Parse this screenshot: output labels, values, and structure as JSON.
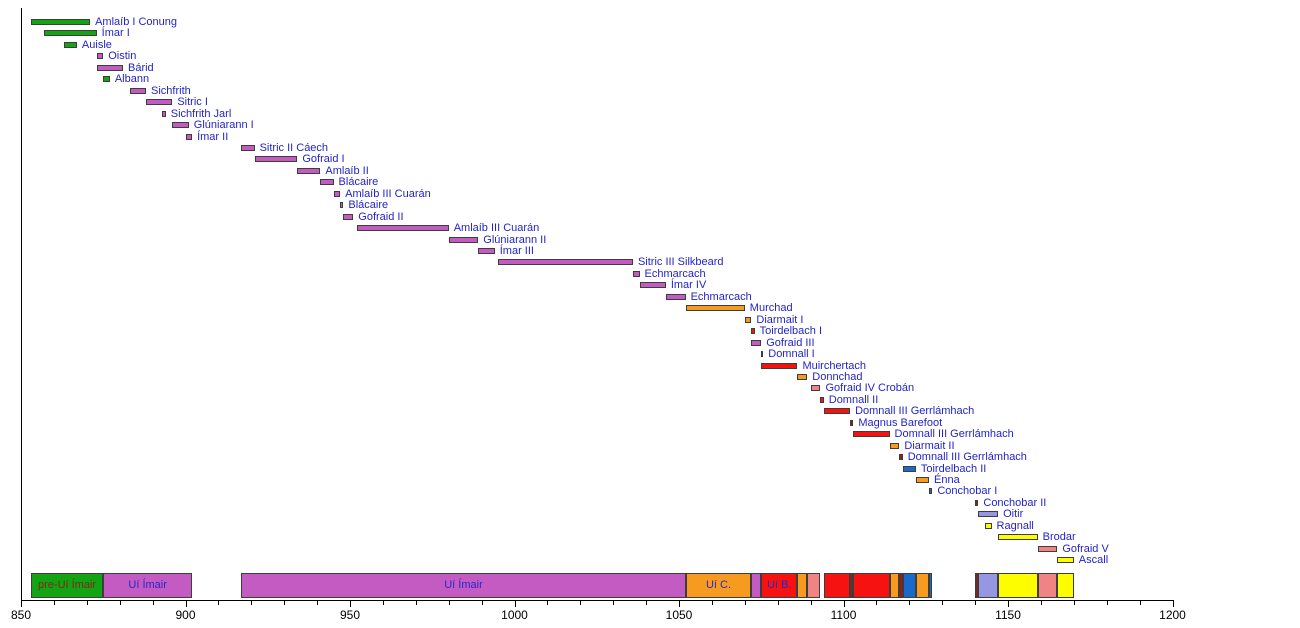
{
  "palette": {
    "green": "#13a413",
    "purple": "#c35bc3",
    "orange": "#f79b20",
    "red": "#f71212",
    "darkred": "#9e1a10",
    "salmon": "#f08484",
    "blue": "#1a6acc",
    "periwinkle": "#9697e3",
    "yellow": "#fdfd00"
  },
  "text_colors": {
    "king_label": "#2323c8",
    "summary_label": "#2828c8",
    "summary_label_alt": "#7b2a1d",
    "axis_label": "#000000"
  },
  "chart_data": {
    "type": "bar",
    "variant": "gantt-timeline",
    "xlabel": "",
    "ylabel": "",
    "grid": false,
    "legend": false,
    "axis": {
      "x_min": 850,
      "x_max": 1200,
      "x_ticks": [
        850,
        900,
        950,
        1000,
        1050,
        1100,
        1150,
        1200
      ],
      "minor_tick_step": 10
    },
    "rows": [
      {
        "label": "Amlaíb I Conung",
        "start": 853,
        "end": 871,
        "color": "green"
      },
      {
        "label": "Ímar I",
        "start": 857,
        "end": 873,
        "color": "green"
      },
      {
        "label": "Auisle",
        "start": 863,
        "end": 867,
        "color": "green"
      },
      {
        "label": "Oistin",
        "start": 873,
        "end": 875,
        "color": "purple"
      },
      {
        "label": "Bárid",
        "start": 873,
        "end": 881,
        "color": "purple"
      },
      {
        "label": "Albann",
        "start": 875,
        "end": 877,
        "color": "green"
      },
      {
        "label": "Sichfrith",
        "start": 883,
        "end": 888,
        "color": "purple"
      },
      {
        "label": "Sitric I",
        "start": 888,
        "end": 896,
        "color": "purple"
      },
      {
        "label": "Sichfrith Jarl",
        "start": 893,
        "end": 894,
        "color": "purple"
      },
      {
        "label": "Glúniarann I",
        "start": 896,
        "end": 901,
        "color": "purple"
      },
      {
        "label": "Ímar II",
        "start": 900,
        "end": 902,
        "color": "purple"
      },
      {
        "label": "Sitric II Cáech",
        "start": 917,
        "end": 921,
        "color": "purple"
      },
      {
        "label": "Gofraid I",
        "start": 921,
        "end": 934,
        "color": "purple"
      },
      {
        "label": "Amlaíb II",
        "start": 934,
        "end": 941,
        "color": "purple"
      },
      {
        "label": "Blácaire",
        "start": 941,
        "end": 945,
        "color": "purple"
      },
      {
        "label": "Amlaíb III Cuarán",
        "start": 945,
        "end": 947,
        "color": "purple"
      },
      {
        "label": "Blácaire",
        "start": 947,
        "end": 948,
        "color": "purple"
      },
      {
        "label": "Gofraid II",
        "start": 948,
        "end": 951,
        "color": "purple"
      },
      {
        "label": "Amlaíb III Cuarán",
        "start": 952,
        "end": 980,
        "color": "purple"
      },
      {
        "label": "Glúniarann II",
        "start": 980,
        "end": 989,
        "color": "purple"
      },
      {
        "label": "Ímar III",
        "start": 989,
        "end": 994,
        "color": "purple"
      },
      {
        "label": "Sitric III Silkbeard",
        "start": 995,
        "end": 1036,
        "color": "purple"
      },
      {
        "label": "Echmarcach",
        "start": 1036,
        "end": 1038,
        "color": "purple"
      },
      {
        "label": "Ímar IV",
        "start": 1038,
        "end": 1046,
        "color": "purple"
      },
      {
        "label": "Echmarcach",
        "start": 1046,
        "end": 1052,
        "color": "purple"
      },
      {
        "label": "Murchad",
        "start": 1052,
        "end": 1070,
        "color": "orange"
      },
      {
        "label": "Diarmait I",
        "start": 1070,
        "end": 1072,
        "color": "orange"
      },
      {
        "label": "Toirdelbach I",
        "start": 1072,
        "end": 1073,
        "color": "red"
      },
      {
        "label": "Gofraid III",
        "start": 1072,
        "end": 1075,
        "color": "purple"
      },
      {
        "label": "Domnall I",
        "start": 1075,
        "end": 1075,
        "color": "orange"
      },
      {
        "label": "Muirchertach",
        "start": 1075,
        "end": 1086,
        "color": "red"
      },
      {
        "label": "Donnchad",
        "start": 1086,
        "end": 1089,
        "color": "orange"
      },
      {
        "label": "Gofraid IV Crobán",
        "start": 1090,
        "end": 1093,
        "color": "salmon"
      },
      {
        "label": "Domnall II",
        "start": 1093,
        "end": 1094,
        "color": "red"
      },
      {
        "label": "Domnall III Gerrlámhach",
        "start": 1094,
        "end": 1102,
        "color": "red"
      },
      {
        "label": "Magnus Barefoot",
        "start": 1102,
        "end": 1103,
        "color": "darkred"
      },
      {
        "label": "Domnall III Gerrlámhach",
        "start": 1103,
        "end": 1114,
        "color": "red"
      },
      {
        "label": "Diarmait II",
        "start": 1114,
        "end": 1117,
        "color": "orange"
      },
      {
        "label": "Domnall III Gerrlámhach",
        "start": 1117,
        "end": 1118,
        "color": "darkred"
      },
      {
        "label": "Toirdelbach II",
        "start": 1118,
        "end": 1122,
        "color": "blue"
      },
      {
        "label": "Énna",
        "start": 1122,
        "end": 1126,
        "color": "orange"
      },
      {
        "label": "Conchobar I",
        "start": 1126,
        "end": 1127,
        "color": "blue"
      },
      {
        "label": "Conchobar II",
        "start": 1140,
        "end": 1141,
        "color": "darkred"
      },
      {
        "label": "Oitir",
        "start": 1141,
        "end": 1147,
        "color": "periwinkle"
      },
      {
        "label": "Ragnall",
        "start": 1143,
        "end": 1145,
        "color": "yellow"
      },
      {
        "label": "Brodar",
        "start": 1147,
        "end": 1159,
        "color": "yellow"
      },
      {
        "label": "Gofraid V",
        "start": 1159,
        "end": 1165,
        "color": "salmon"
      },
      {
        "label": "Ascall",
        "start": 1165,
        "end": 1170,
        "color": "yellow"
      }
    ],
    "summary": [
      {
        "label": "pre-Uí Ímair",
        "start": 853,
        "end": 875,
        "color": "green",
        "label_color": "#7b2a1d"
      },
      {
        "label": "Uí Ímair",
        "start": 875,
        "end": 902,
        "color": "purple"
      },
      {
        "label": "Uí Ímair",
        "start": 917,
        "end": 1052,
        "color": "purple"
      },
      {
        "label": "Uí C.",
        "start": 1052,
        "end": 1072,
        "color": "orange"
      },
      {
        "label": "",
        "start": 1072,
        "end": 1075,
        "color": "purple"
      },
      {
        "label": "Uí B.",
        "start": 1075,
        "end": 1086,
        "color": "red"
      },
      {
        "label": "",
        "start": 1086,
        "end": 1089,
        "color": "orange"
      },
      {
        "label": "",
        "start": 1089,
        "end": 1093,
        "color": "salmon"
      },
      {
        "label": "",
        "start": 1094,
        "end": 1102,
        "color": "red"
      },
      {
        "label": "",
        "start": 1102,
        "end": 1103,
        "color": "darkred"
      },
      {
        "label": "",
        "start": 1103,
        "end": 1114,
        "color": "red"
      },
      {
        "label": "",
        "start": 1114,
        "end": 1117,
        "color": "orange"
      },
      {
        "label": "",
        "start": 1117,
        "end": 1118,
        "color": "darkred"
      },
      {
        "label": "",
        "start": 1118,
        "end": 1122,
        "color": "blue"
      },
      {
        "label": "",
        "start": 1122,
        "end": 1126,
        "color": "orange"
      },
      {
        "label": "",
        "start": 1126,
        "end": 1127,
        "color": "blue"
      },
      {
        "label": "",
        "start": 1140,
        "end": 1141,
        "color": "darkred"
      },
      {
        "label": "",
        "start": 1141,
        "end": 1147,
        "color": "periwinkle"
      },
      {
        "label": "",
        "start": 1147,
        "end": 1159,
        "color": "yellow"
      },
      {
        "label": "",
        "start": 1159,
        "end": 1165,
        "color": "salmon"
      },
      {
        "label": "",
        "start": 1165,
        "end": 1170,
        "color": "yellow"
      }
    ]
  }
}
